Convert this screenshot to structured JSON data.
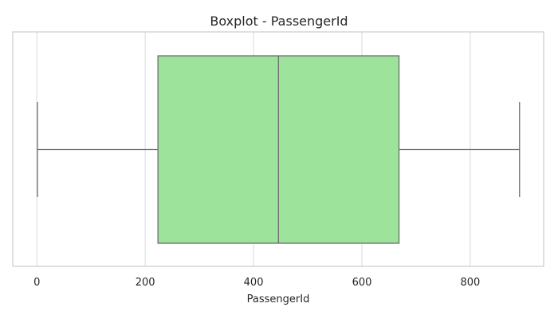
{
  "chart_data": {
    "type": "box",
    "title": "Boxplot - PassengerId",
    "xlabel": "PassengerId",
    "ylabel": "",
    "xlim": [
      -44.5,
      935.5
    ],
    "xticks": [
      0,
      200,
      400,
      600,
      800
    ],
    "tick_labels": [
      "0",
      "200",
      "400",
      "600",
      "800"
    ],
    "grid": true,
    "box": {
      "min": 1,
      "q1": 223.5,
      "median": 446,
      "q3": 668.5,
      "max": 891
    },
    "colors": {
      "box_fill": "#9de39c",
      "box_edge": "#6e6e6e",
      "grid": "#d9d9d9",
      "frame": "#cccccc",
      "text": "#262626"
    }
  }
}
